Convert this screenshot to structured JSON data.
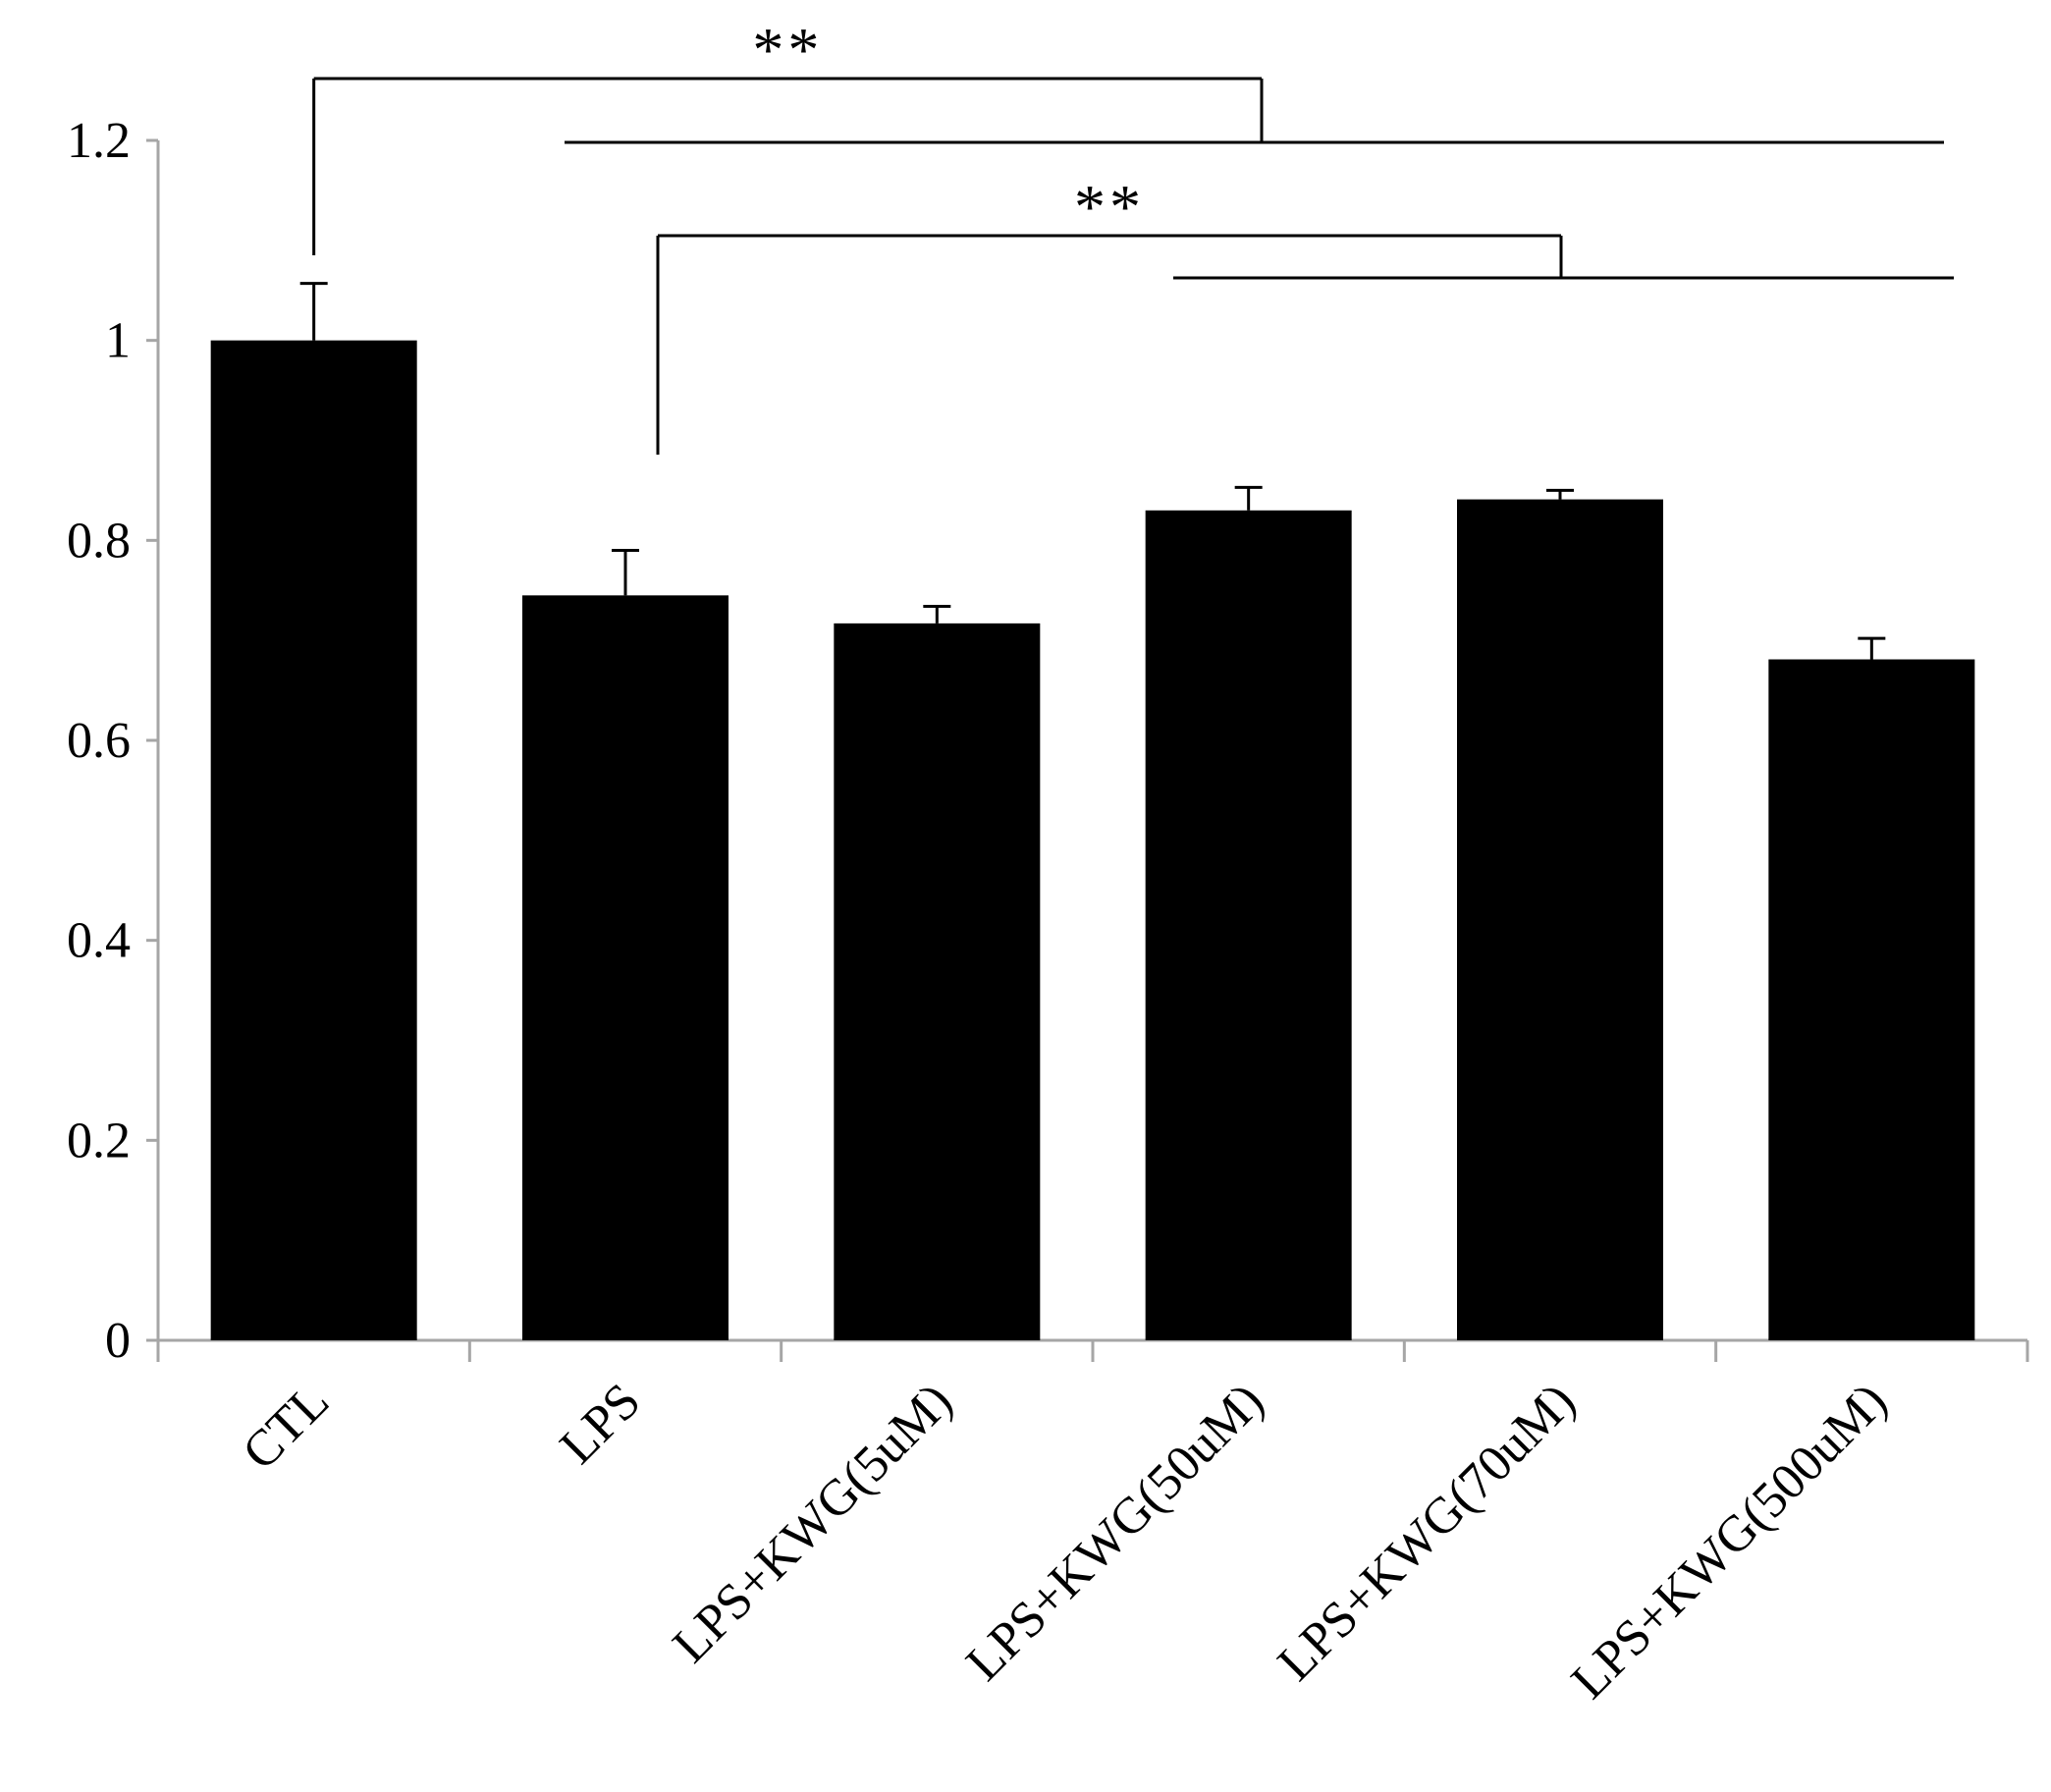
{
  "chart_data": {
    "type": "bar",
    "categories": [
      "CTL",
      "LPS",
      "LPS+KWG(5uM)",
      "LPS+KWG(50uM)",
      "LPS+KWG(70uM)",
      "LPS+KWG(500uM)"
    ],
    "values": [
      1.0,
      0.745,
      0.717,
      0.83,
      0.841,
      0.681
    ],
    "errors": [
      0.057,
      0.045,
      0.017,
      0.023,
      0.009,
      0.021
    ],
    "yticks": [
      "0",
      "0.2",
      "0.4",
      "0.6",
      "0.8",
      "1",
      "1.2"
    ],
    "ylim": [
      0,
      1.2
    ],
    "bar_color": "#000000",
    "grid": false,
    "title": "",
    "xlabel": "",
    "ylabel": "",
    "significance": [
      {
        "label": "**",
        "from": "CTL",
        "to": [
          "LPS",
          "LPS+KWG(5uM)",
          "LPS+KWG(50uM)",
          "LPS+KWG(70uM)",
          "LPS+KWG(500uM)"
        ]
      },
      {
        "label": "**",
        "from": "LPS",
        "to": [
          "LPS+KWG(50uM)",
          "LPS+KWG(70uM)",
          "LPS+KWG(500uM)"
        ]
      }
    ]
  }
}
